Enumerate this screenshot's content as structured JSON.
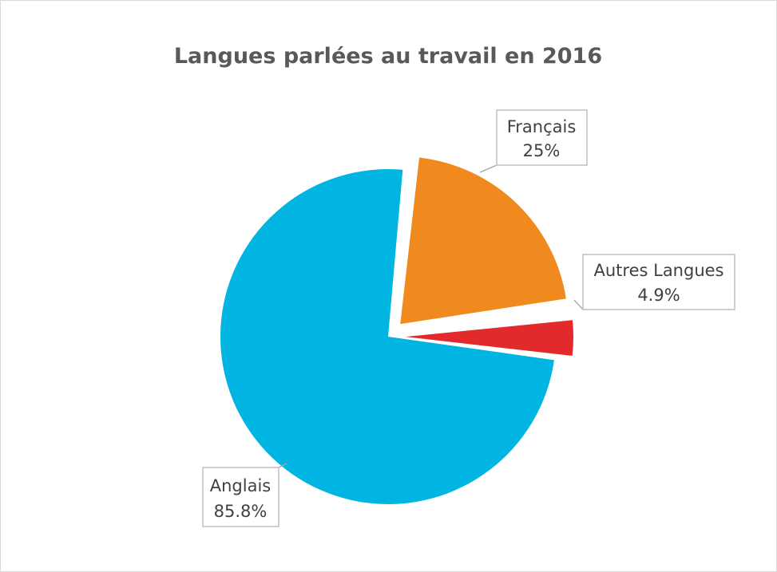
{
  "chart_data": {
    "type": "pie",
    "title": "Langues parlées au travail en 2016",
    "slices": [
      {
        "label": "Anglais",
        "value": 85.8,
        "value_label": "85.8%",
        "color": "#00B5E2",
        "exploded": false
      },
      {
        "label": "Français",
        "value": 25,
        "value_label": "25%",
        "color": "#F08A1E",
        "exploded": true
      },
      {
        "label": "Autres Langues",
        "value": 4.9,
        "value_label": "4.9%",
        "color": "#E2292B",
        "exploded": true
      }
    ],
    "legend": "none",
    "data_labels": "callout boxes"
  }
}
